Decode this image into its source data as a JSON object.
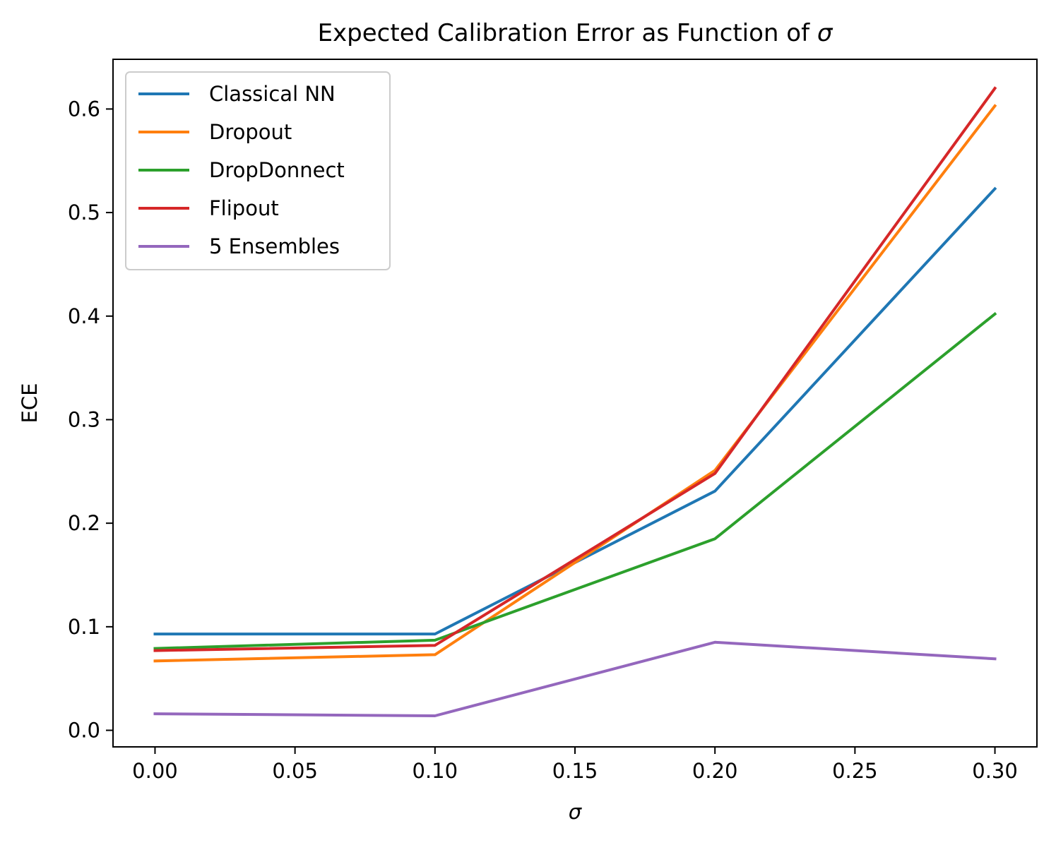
{
  "chart_data": {
    "type": "line",
    "title": "Expected Calibration Error as Function of σ",
    "title_prefix": "Expected Calibration Error as Function of ",
    "title_symbol": "σ",
    "xlabel": "σ",
    "ylabel": "ECE",
    "x": [
      0.0,
      0.1,
      0.2,
      0.3
    ],
    "xlim": [
      -0.015,
      0.315
    ],
    "ylim": [
      -0.016,
      0.648
    ],
    "xticks": [
      0.0,
      0.05,
      0.1,
      0.15,
      0.2,
      0.25,
      0.3
    ],
    "xtick_labels": [
      "0.00",
      "0.05",
      "0.10",
      "0.15",
      "0.20",
      "0.25",
      "0.30"
    ],
    "yticks": [
      0.0,
      0.1,
      0.2,
      0.3,
      0.4,
      0.5,
      0.6
    ],
    "ytick_labels": [
      "0.0",
      "0.1",
      "0.2",
      "0.3",
      "0.4",
      "0.5",
      "0.6"
    ],
    "legend_position": "top-left",
    "grid": false,
    "series": [
      {
        "name": "Classical NN",
        "color": "#1f77b4",
        "values": [
          0.093,
          0.093,
          0.231,
          0.523
        ]
      },
      {
        "name": "Dropout",
        "color": "#ff7f0e",
        "values": [
          0.067,
          0.073,
          0.251,
          0.603
        ]
      },
      {
        "name": "DropDonnect",
        "color": "#2ca02c",
        "values": [
          0.079,
          0.087,
          0.185,
          0.402
        ]
      },
      {
        "name": "Flipout",
        "color": "#d62728",
        "values": [
          0.077,
          0.082,
          0.248,
          0.62
        ]
      },
      {
        "name": "5 Ensembles",
        "color": "#9467bd",
        "values": [
          0.016,
          0.014,
          0.085,
          0.069
        ]
      }
    ]
  }
}
